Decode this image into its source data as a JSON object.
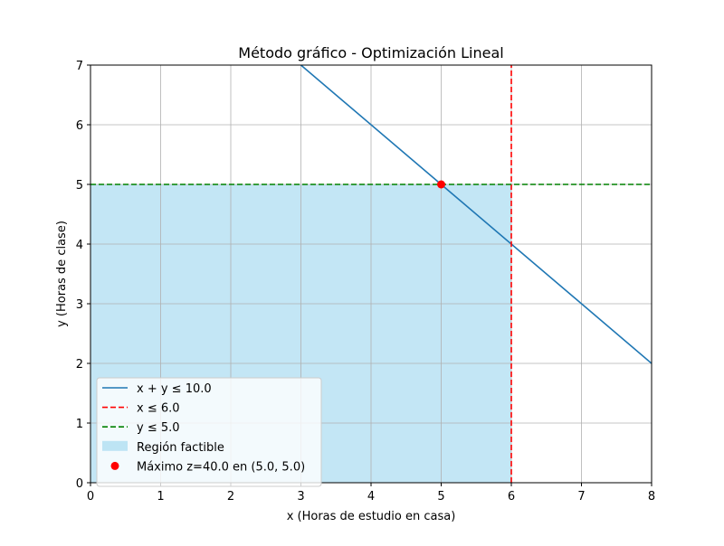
{
  "chart_data": {
    "type": "line",
    "title": "Método gráfico - Optimización Lineal",
    "xlabel": "x (Horas de estudio en casa)",
    "ylabel": "y (Horas de clase)",
    "xlim": [
      0,
      8
    ],
    "ylim": [
      0,
      7
    ],
    "xticks": [
      0,
      1,
      2,
      3,
      4,
      5,
      6,
      7,
      8
    ],
    "yticks": [
      0,
      1,
      2,
      3,
      4,
      5,
      6,
      7
    ],
    "grid": true,
    "legend_position": "lower-left",
    "series": [
      {
        "name": "x + y ≤ 10.0",
        "style": "solid",
        "color": "#1f77b4",
        "x": [
          0,
          8
        ],
        "y": [
          10,
          2
        ]
      },
      {
        "name": "x ≤ 6.0",
        "style": "dashed",
        "color": "#ff0000",
        "x": [
          6,
          6
        ],
        "y": [
          0,
          7
        ]
      },
      {
        "name": "y ≤ 5.0",
        "style": "dashed",
        "color": "#008000",
        "x": [
          0,
          8
        ],
        "y": [
          5,
          5
        ]
      }
    ],
    "region": {
      "name": "Región factible",
      "color": "#87ceeb",
      "x": [
        0,
        6,
        6,
        0
      ],
      "y": [
        0,
        0,
        5,
        5
      ]
    },
    "points": [
      {
        "name": "Máximo z=40.0 en (5.0, 5.0)",
        "color": "#ff0000",
        "x": 5,
        "y": 5
      }
    ]
  }
}
